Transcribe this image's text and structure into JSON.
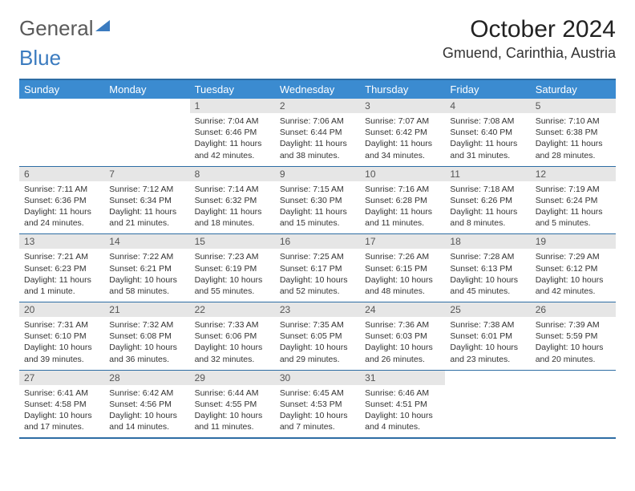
{
  "logo": {
    "text1": "General",
    "text2": "Blue"
  },
  "title": "October 2024",
  "location": "Gmuend, Carinthia, Austria",
  "colors": {
    "header_bg": "#3b8bd0",
    "header_text": "#ffffff",
    "border": "#2e6da4",
    "daynum_bg": "#e6e6e6",
    "daynum_text": "#555555",
    "body_text": "#333333",
    "logo_gray": "#5a5a5a",
    "logo_blue": "#3b7bbf"
  },
  "day_names": [
    "Sunday",
    "Monday",
    "Tuesday",
    "Wednesday",
    "Thursday",
    "Friday",
    "Saturday"
  ],
  "weeks": [
    [
      {
        "n": "",
        "sunrise": "",
        "sunset": "",
        "daylight": ""
      },
      {
        "n": "",
        "sunrise": "",
        "sunset": "",
        "daylight": ""
      },
      {
        "n": "1",
        "sunrise": "Sunrise: 7:04 AM",
        "sunset": "Sunset: 6:46 PM",
        "daylight": "Daylight: 11 hours and 42 minutes."
      },
      {
        "n": "2",
        "sunrise": "Sunrise: 7:06 AM",
        "sunset": "Sunset: 6:44 PM",
        "daylight": "Daylight: 11 hours and 38 minutes."
      },
      {
        "n": "3",
        "sunrise": "Sunrise: 7:07 AM",
        "sunset": "Sunset: 6:42 PM",
        "daylight": "Daylight: 11 hours and 34 minutes."
      },
      {
        "n": "4",
        "sunrise": "Sunrise: 7:08 AM",
        "sunset": "Sunset: 6:40 PM",
        "daylight": "Daylight: 11 hours and 31 minutes."
      },
      {
        "n": "5",
        "sunrise": "Sunrise: 7:10 AM",
        "sunset": "Sunset: 6:38 PM",
        "daylight": "Daylight: 11 hours and 28 minutes."
      }
    ],
    [
      {
        "n": "6",
        "sunrise": "Sunrise: 7:11 AM",
        "sunset": "Sunset: 6:36 PM",
        "daylight": "Daylight: 11 hours and 24 minutes."
      },
      {
        "n": "7",
        "sunrise": "Sunrise: 7:12 AM",
        "sunset": "Sunset: 6:34 PM",
        "daylight": "Daylight: 11 hours and 21 minutes."
      },
      {
        "n": "8",
        "sunrise": "Sunrise: 7:14 AM",
        "sunset": "Sunset: 6:32 PM",
        "daylight": "Daylight: 11 hours and 18 minutes."
      },
      {
        "n": "9",
        "sunrise": "Sunrise: 7:15 AM",
        "sunset": "Sunset: 6:30 PM",
        "daylight": "Daylight: 11 hours and 15 minutes."
      },
      {
        "n": "10",
        "sunrise": "Sunrise: 7:16 AM",
        "sunset": "Sunset: 6:28 PM",
        "daylight": "Daylight: 11 hours and 11 minutes."
      },
      {
        "n": "11",
        "sunrise": "Sunrise: 7:18 AM",
        "sunset": "Sunset: 6:26 PM",
        "daylight": "Daylight: 11 hours and 8 minutes."
      },
      {
        "n": "12",
        "sunrise": "Sunrise: 7:19 AM",
        "sunset": "Sunset: 6:24 PM",
        "daylight": "Daylight: 11 hours and 5 minutes."
      }
    ],
    [
      {
        "n": "13",
        "sunrise": "Sunrise: 7:21 AM",
        "sunset": "Sunset: 6:23 PM",
        "daylight": "Daylight: 11 hours and 1 minute."
      },
      {
        "n": "14",
        "sunrise": "Sunrise: 7:22 AM",
        "sunset": "Sunset: 6:21 PM",
        "daylight": "Daylight: 10 hours and 58 minutes."
      },
      {
        "n": "15",
        "sunrise": "Sunrise: 7:23 AM",
        "sunset": "Sunset: 6:19 PM",
        "daylight": "Daylight: 10 hours and 55 minutes."
      },
      {
        "n": "16",
        "sunrise": "Sunrise: 7:25 AM",
        "sunset": "Sunset: 6:17 PM",
        "daylight": "Daylight: 10 hours and 52 minutes."
      },
      {
        "n": "17",
        "sunrise": "Sunrise: 7:26 AM",
        "sunset": "Sunset: 6:15 PM",
        "daylight": "Daylight: 10 hours and 48 minutes."
      },
      {
        "n": "18",
        "sunrise": "Sunrise: 7:28 AM",
        "sunset": "Sunset: 6:13 PM",
        "daylight": "Daylight: 10 hours and 45 minutes."
      },
      {
        "n": "19",
        "sunrise": "Sunrise: 7:29 AM",
        "sunset": "Sunset: 6:12 PM",
        "daylight": "Daylight: 10 hours and 42 minutes."
      }
    ],
    [
      {
        "n": "20",
        "sunrise": "Sunrise: 7:31 AM",
        "sunset": "Sunset: 6:10 PM",
        "daylight": "Daylight: 10 hours and 39 minutes."
      },
      {
        "n": "21",
        "sunrise": "Sunrise: 7:32 AM",
        "sunset": "Sunset: 6:08 PM",
        "daylight": "Daylight: 10 hours and 36 minutes."
      },
      {
        "n": "22",
        "sunrise": "Sunrise: 7:33 AM",
        "sunset": "Sunset: 6:06 PM",
        "daylight": "Daylight: 10 hours and 32 minutes."
      },
      {
        "n": "23",
        "sunrise": "Sunrise: 7:35 AM",
        "sunset": "Sunset: 6:05 PM",
        "daylight": "Daylight: 10 hours and 29 minutes."
      },
      {
        "n": "24",
        "sunrise": "Sunrise: 7:36 AM",
        "sunset": "Sunset: 6:03 PM",
        "daylight": "Daylight: 10 hours and 26 minutes."
      },
      {
        "n": "25",
        "sunrise": "Sunrise: 7:38 AM",
        "sunset": "Sunset: 6:01 PM",
        "daylight": "Daylight: 10 hours and 23 minutes."
      },
      {
        "n": "26",
        "sunrise": "Sunrise: 7:39 AM",
        "sunset": "Sunset: 5:59 PM",
        "daylight": "Daylight: 10 hours and 20 minutes."
      }
    ],
    [
      {
        "n": "27",
        "sunrise": "Sunrise: 6:41 AM",
        "sunset": "Sunset: 4:58 PM",
        "daylight": "Daylight: 10 hours and 17 minutes."
      },
      {
        "n": "28",
        "sunrise": "Sunrise: 6:42 AM",
        "sunset": "Sunset: 4:56 PM",
        "daylight": "Daylight: 10 hours and 14 minutes."
      },
      {
        "n": "29",
        "sunrise": "Sunrise: 6:44 AM",
        "sunset": "Sunset: 4:55 PM",
        "daylight": "Daylight: 10 hours and 11 minutes."
      },
      {
        "n": "30",
        "sunrise": "Sunrise: 6:45 AM",
        "sunset": "Sunset: 4:53 PM",
        "daylight": "Daylight: 10 hours and 7 minutes."
      },
      {
        "n": "31",
        "sunrise": "Sunrise: 6:46 AM",
        "sunset": "Sunset: 4:51 PM",
        "daylight": "Daylight: 10 hours and 4 minutes."
      },
      {
        "n": "",
        "sunrise": "",
        "sunset": "",
        "daylight": ""
      },
      {
        "n": "",
        "sunrise": "",
        "sunset": "",
        "daylight": ""
      }
    ]
  ]
}
